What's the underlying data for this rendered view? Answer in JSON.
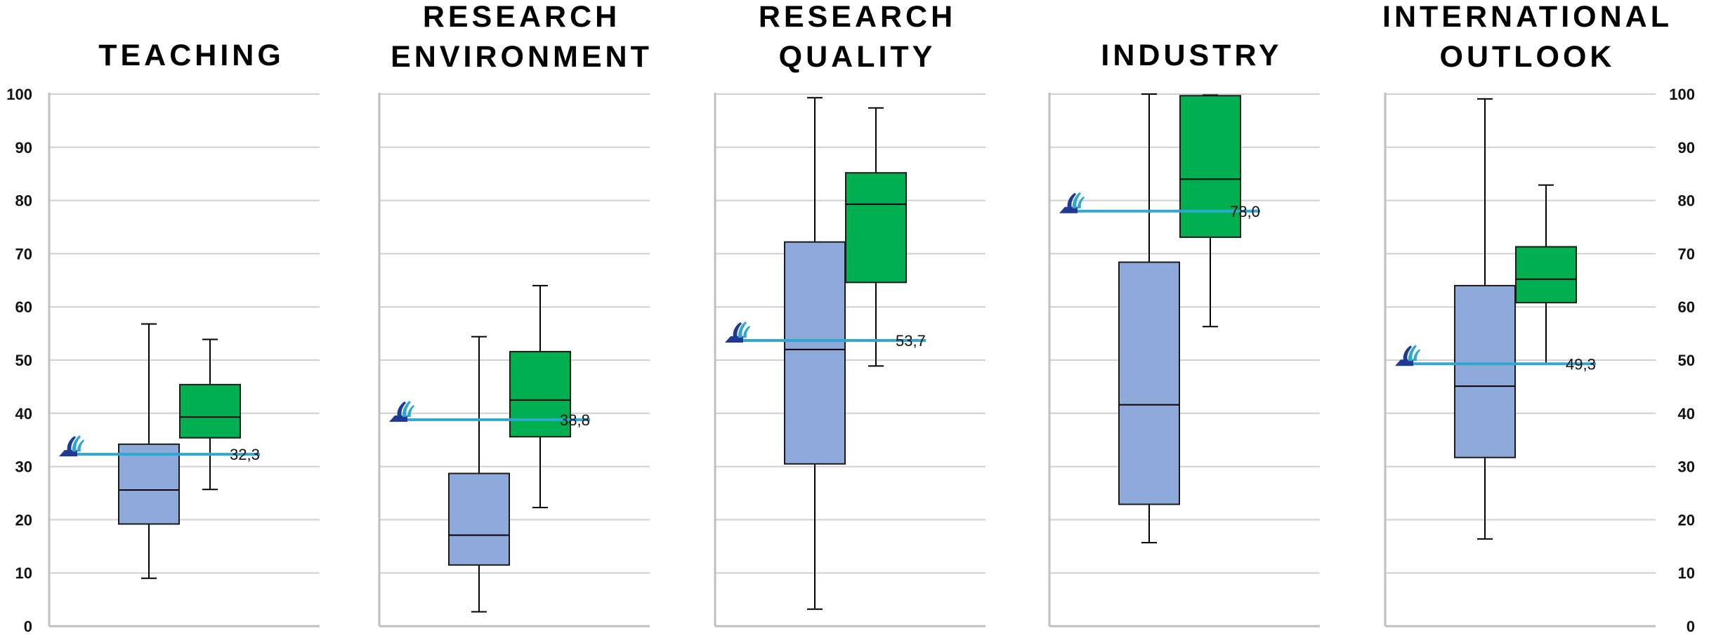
{
  "chart_data": {
    "type": "box",
    "ylim": [
      0,
      100
    ],
    "y_ticks": [
      "0",
      "10",
      "20",
      "30",
      "40",
      "50",
      "60",
      "70",
      "80",
      "90",
      "100"
    ],
    "grid": true,
    "colors": {
      "box_a": "#8eaadb",
      "box_b": "#00b050",
      "reference_line": "#2ea8d2",
      "logo_dark": "#1f3a93",
      "logo_light": "#2ea8d2",
      "gridline": "#d0d0d0",
      "axis": "#bfbfbf"
    },
    "panels": [
      {
        "title_lines": [
          "TEACHING"
        ],
        "boxes": [
          {
            "min": 9,
            "q1": 19.2,
            "median": 25.6,
            "q3": 34.2,
            "max": 56.8
          },
          {
            "min": 25.7,
            "q1": 35.4,
            "median": 39.3,
            "q3": 45.4,
            "max": 53.9
          }
        ],
        "reference": {
          "value": 32.3,
          "label": "32,3"
        }
      },
      {
        "title_lines": [
          "RESEARCH",
          "ENVIRONMENT"
        ],
        "boxes": [
          {
            "min": 2.7,
            "q1": 11.5,
            "median": 17.1,
            "q3": 28.7,
            "max": 54.4
          },
          {
            "min": 22.3,
            "q1": 35.6,
            "median": 42.5,
            "q3": 51.6,
            "max": 64.0
          }
        ],
        "reference": {
          "value": 38.8,
          "label": "38,8"
        }
      },
      {
        "title_lines": [
          "RESEARCH",
          "QUALITY"
        ],
        "boxes": [
          {
            "min": 3.2,
            "q1": 30.5,
            "median": 52.0,
            "q3": 72.2,
            "max": 99.3
          },
          {
            "min": 48.9,
            "q1": 64.6,
            "median": 79.3,
            "q3": 85.2,
            "max": 97.4
          }
        ],
        "reference": {
          "value": 53.7,
          "label": "53,7"
        }
      },
      {
        "title_lines": [
          "INDUSTRY"
        ],
        "boxes": [
          {
            "min": 15.7,
            "q1": 22.9,
            "median": 41.6,
            "q3": 68.4,
            "max": 100.0
          },
          {
            "min": 56.3,
            "q1": 73.1,
            "median": 84.0,
            "q3": 99.7,
            "max": 99.8
          }
        ],
        "reference": {
          "value": 78.0,
          "label": "78,0"
        }
      },
      {
        "title_lines": [
          "INTERNATIONAL",
          "OUTLOOK"
        ],
        "boxes": [
          {
            "min": 16.4,
            "q1": 31.7,
            "median": 45.1,
            "q3": 64.0,
            "max": 99.1
          },
          {
            "min": 49.3,
            "q1": 60.8,
            "median": 65.2,
            "q3": 71.3,
            "max": 82.9
          }
        ],
        "reference": {
          "value": 49.3,
          "label": "49,3"
        }
      }
    ]
  }
}
